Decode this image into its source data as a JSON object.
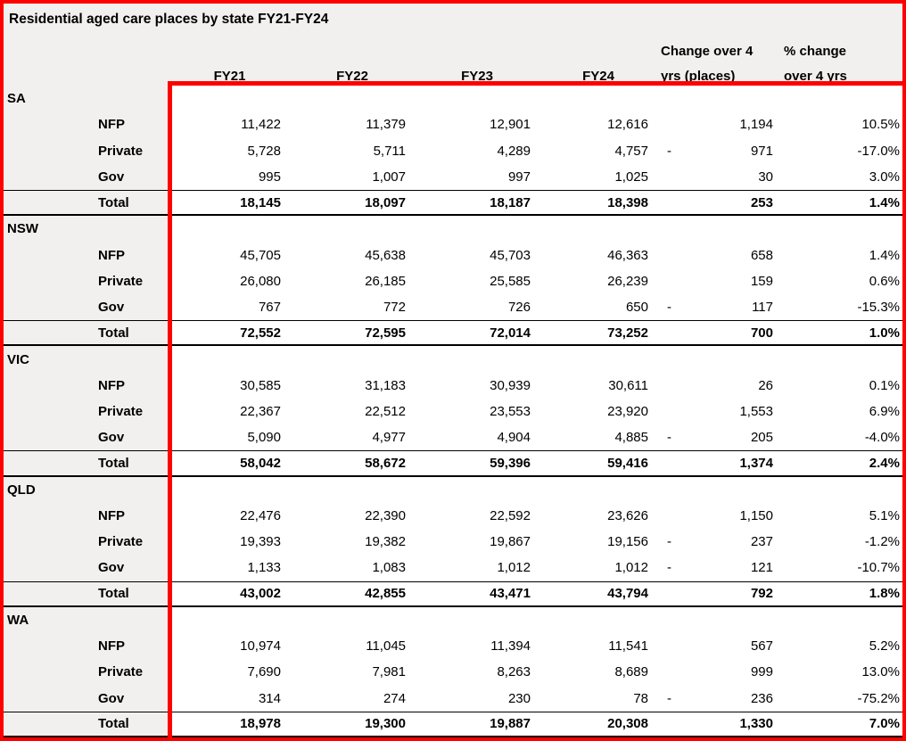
{
  "chart_data": {
    "type": "table",
    "title": "Residential aged care places by state FY21-FY24",
    "columns": [
      "",
      "",
      "FY21",
      "FY22",
      "FY23",
      "FY24",
      "Change over 4 yrs (places)",
      "% change over 4 yrs"
    ],
    "header": {
      "fy_labels": [
        "FY21",
        "FY22",
        "FY23",
        "FY24"
      ],
      "change_lines": [
        "Change over 4",
        "yrs (places)"
      ],
      "pct_lines": [
        "% change",
        "over 4 yrs"
      ]
    },
    "groups": [
      {
        "state": "SA",
        "rows": [
          {
            "label": "NFP",
            "values": [
              "11,422",
              "11,379",
              "12,901",
              "12,616"
            ],
            "change": "1,194",
            "change_negative": false,
            "pct": "10.5%"
          },
          {
            "label": "Private",
            "values": [
              "5,728",
              "5,711",
              "4,289",
              "4,757"
            ],
            "change": "971",
            "change_negative": true,
            "pct": "-17.0%"
          },
          {
            "label": "Gov",
            "values": [
              "995",
              "1,007",
              "997",
              "1,025"
            ],
            "change": "30",
            "change_negative": false,
            "pct": "3.0%"
          }
        ],
        "total": {
          "label": "Total",
          "values": [
            "18,145",
            "18,097",
            "18,187",
            "18,398"
          ],
          "change": "253",
          "change_negative": false,
          "pct": "1.4%"
        }
      },
      {
        "state": "NSW",
        "rows": [
          {
            "label": "NFP",
            "values": [
              "45,705",
              "45,638",
              "45,703",
              "46,363"
            ],
            "change": "658",
            "change_negative": false,
            "pct": "1.4%"
          },
          {
            "label": "Private",
            "values": [
              "26,080",
              "26,185",
              "25,585",
              "26,239"
            ],
            "change": "159",
            "change_negative": false,
            "pct": "0.6%"
          },
          {
            "label": "Gov",
            "values": [
              "767",
              "772",
              "726",
              "650"
            ],
            "change": "117",
            "change_negative": true,
            "pct": "-15.3%"
          }
        ],
        "total": {
          "label": "Total",
          "values": [
            "72,552",
            "72,595",
            "72,014",
            "73,252"
          ],
          "change": "700",
          "change_negative": false,
          "pct": "1.0%"
        }
      },
      {
        "state": "VIC",
        "rows": [
          {
            "label": "NFP",
            "values": [
              "30,585",
              "31,183",
              "30,939",
              "30,611"
            ],
            "change": "26",
            "change_negative": false,
            "pct": "0.1%"
          },
          {
            "label": "Private",
            "values": [
              "22,367",
              "22,512",
              "23,553",
              "23,920"
            ],
            "change": "1,553",
            "change_negative": false,
            "pct": "6.9%"
          },
          {
            "label": "Gov",
            "values": [
              "5,090",
              "4,977",
              "4,904",
              "4,885"
            ],
            "change": "205",
            "change_negative": true,
            "pct": "-4.0%"
          }
        ],
        "total": {
          "label": "Total",
          "values": [
            "58,042",
            "58,672",
            "59,396",
            "59,416"
          ],
          "change": "1,374",
          "change_negative": false,
          "pct": "2.4%"
        }
      },
      {
        "state": "QLD",
        "rows": [
          {
            "label": "NFP",
            "values": [
              "22,476",
              "22,390",
              "22,592",
              "23,626"
            ],
            "change": "1,150",
            "change_negative": false,
            "pct": "5.1%"
          },
          {
            "label": "Private",
            "values": [
              "19,393",
              "19,382",
              "19,867",
              "19,156"
            ],
            "change": "237",
            "change_negative": true,
            "pct": "-1.2%"
          },
          {
            "label": "Gov",
            "values": [
              "1,133",
              "1,083",
              "1,012",
              "1,012"
            ],
            "change": "121",
            "change_negative": true,
            "pct": "-10.7%"
          }
        ],
        "total": {
          "label": "Total",
          "values": [
            "43,002",
            "42,855",
            "43,471",
            "43,794"
          ],
          "change": "792",
          "change_negative": false,
          "pct": "1.8%"
        }
      },
      {
        "state": "WA",
        "rows": [
          {
            "label": "NFP",
            "values": [
              "10,974",
              "11,045",
              "11,394",
              "11,541"
            ],
            "change": "567",
            "change_negative": false,
            "pct": "5.2%"
          },
          {
            "label": "Private",
            "values": [
              "7,690",
              "7,981",
              "8,263",
              "8,689"
            ],
            "change": "999",
            "change_negative": false,
            "pct": "13.0%"
          },
          {
            "label": "Gov",
            "values": [
              "314",
              "274",
              "230",
              "78"
            ],
            "change": "236",
            "change_negative": true,
            "pct": "-75.2%"
          }
        ],
        "total": {
          "label": "Total",
          "values": [
            "18,978",
            "19,300",
            "19,887",
            "20,308"
          ],
          "change": "1,330",
          "change_negative": false,
          "pct": "7.0%"
        }
      }
    ]
  },
  "colors": {
    "table_border_red": "#ff0000",
    "label_band_gray": "#f1f0ef",
    "grid_line_black": "#000000",
    "data_area_white": "#ffffff"
  }
}
